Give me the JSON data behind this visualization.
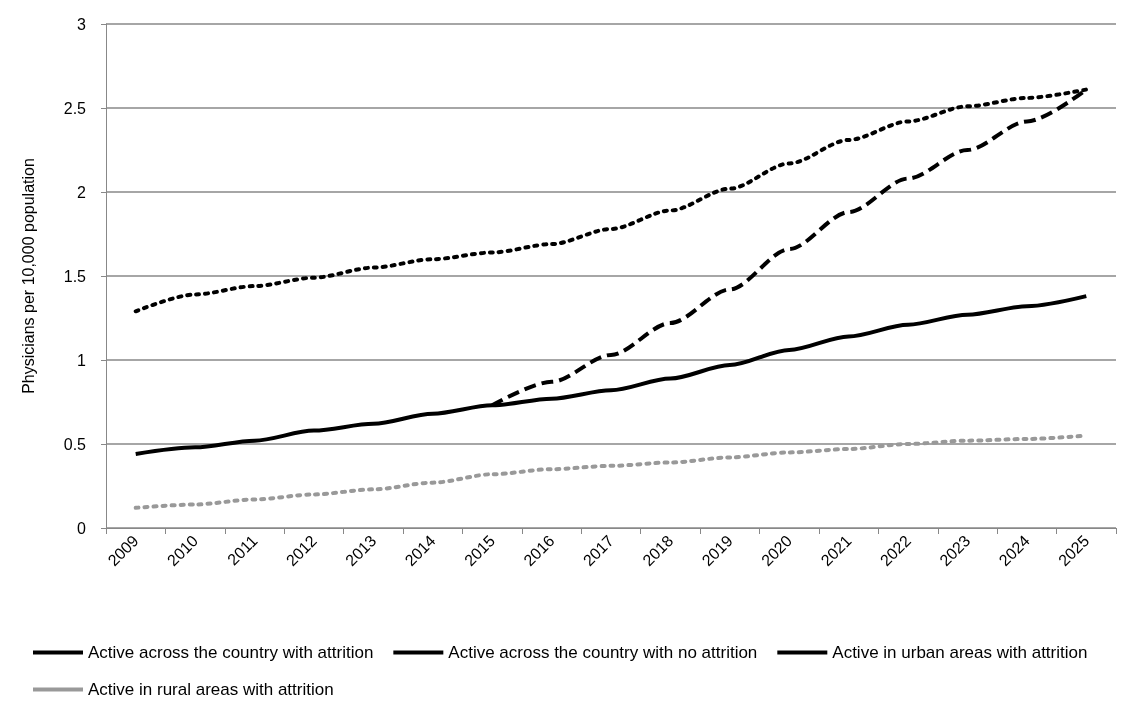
{
  "chart_data": {
    "type": "line",
    "ylabel": "Physicians per 10,000 population",
    "categories": [
      "2009",
      "2010",
      "2011",
      "2012",
      "2013",
      "2014",
      "2015",
      "2016",
      "2017",
      "2018",
      "2019",
      "2020",
      "2021",
      "2022",
      "2023",
      "2024",
      "2025"
    ],
    "series": [
      {
        "name": "Active across the country with attrition",
        "color": "#000000",
        "line_style": "solid",
        "values": [
          0.44,
          0.48,
          0.52,
          0.58,
          0.62,
          0.68,
          0.73,
          0.77,
          0.82,
          0.89,
          0.97,
          1.06,
          1.14,
          1.21,
          1.27,
          1.32,
          1.38
        ]
      },
      {
        "name": "Active across the country with no attrition",
        "color": "#000000",
        "line_style": "dashed",
        "values": [
          null,
          null,
          null,
          null,
          null,
          null,
          0.73,
          0.87,
          1.03,
          1.22,
          1.42,
          1.66,
          1.88,
          2.08,
          2.25,
          2.42,
          2.61
        ]
      },
      {
        "name": "Active in urban areas with attrition",
        "color": "#000000",
        "line_style": "dotted",
        "values": [
          1.29,
          1.39,
          1.44,
          1.49,
          1.55,
          1.6,
          1.64,
          1.69,
          1.78,
          1.89,
          2.02,
          2.17,
          2.31,
          2.42,
          2.51,
          2.56,
          2.61
        ]
      },
      {
        "name": "Active in rural areas with attrition",
        "color": "#999999",
        "line_style": "dotted",
        "values": [
          0.12,
          0.14,
          0.17,
          0.2,
          0.23,
          0.27,
          0.32,
          0.35,
          0.37,
          0.39,
          0.42,
          0.45,
          0.47,
          0.5,
          0.52,
          0.53,
          0.55
        ]
      }
    ],
    "ylim": [
      0,
      3
    ],
    "yticks": [
      0,
      0.5,
      1,
      1.5,
      2,
      2.5,
      3
    ],
    "grid": "y",
    "legend": "bottom",
    "marker": "none"
  }
}
